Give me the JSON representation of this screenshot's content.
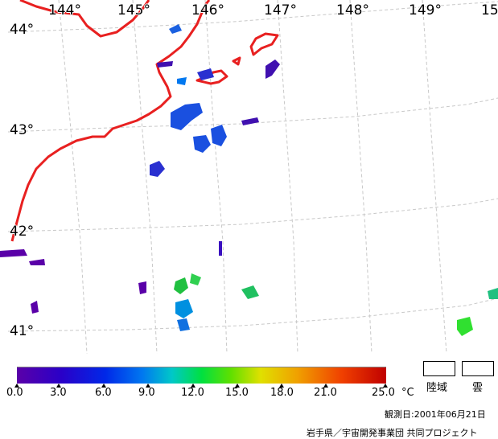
{
  "map": {
    "longitude_labels": [
      "144°",
      "145°",
      "146°",
      "147°",
      "148°",
      "149°",
      "15"
    ],
    "latitude_labels": [
      "44°",
      "43°",
      "42°",
      "41°"
    ],
    "coastline_color": "#e82020",
    "grid_color": "#c8c8c8"
  },
  "colorbar": {
    "ticks": [
      "0.0",
      "3.0",
      "6.0",
      "9.0",
      "12.0",
      "15.0",
      "18.0",
      "21.0",
      "25.0"
    ],
    "unit": "°C"
  },
  "legend": {
    "land_label": "陸域",
    "cloud_label": "雲"
  },
  "footer": {
    "observation_date": "観測日:2001年06月21日",
    "credit": "岩手県／宇宙開発事業団 共同プロジェクト"
  }
}
